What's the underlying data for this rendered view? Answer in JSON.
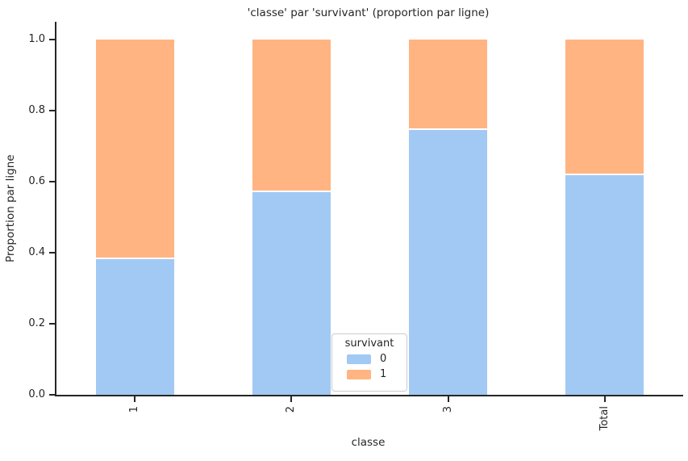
{
  "figure": {
    "background": "#ffffff",
    "text_color": "#262626",
    "spine_color": "#262626"
  },
  "chart_data": {
    "type": "bar",
    "stacked": true,
    "title": "'classe' par 'survivant' (proportion par ligne)",
    "xlabel": "classe",
    "ylabel": "Proportion par ligne",
    "categories": [
      "1",
      "2",
      "3",
      "Total"
    ],
    "series": [
      {
        "name": "0",
        "color": "#a1c9f4",
        "values": [
          0.381,
          0.57,
          0.745,
          0.618
        ]
      },
      {
        "name": "1",
        "color": "#ffb482",
        "values": [
          0.619,
          0.43,
          0.255,
          0.382
        ]
      }
    ],
    "ylim": [
      0.0,
      1.05
    ],
    "yticks": [
      0.0,
      0.2,
      0.4,
      0.6,
      0.8,
      1.0
    ],
    "grid": false,
    "legend": {
      "title": "survivant",
      "position": "inside-bottom-center"
    }
  }
}
